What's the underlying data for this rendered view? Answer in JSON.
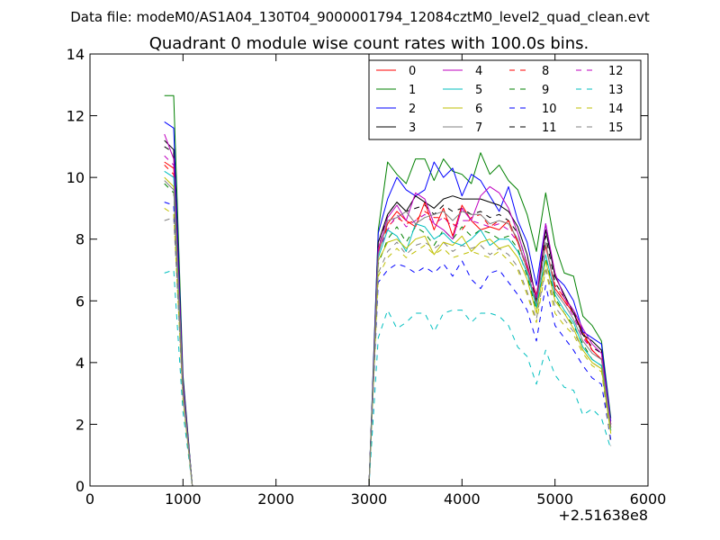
{
  "figure": {
    "suptitle": "Data file: modeM0/AS1A04_130T04_9000001794_12084cztM0_level2_quad_clean.evt"
  },
  "chart_data": {
    "type": "line",
    "title": "Quadrant 0 module wise count rates with 100.0s bins.",
    "xlabel": "",
    "ylabel": "",
    "x_offset_label": "+2.51638e8",
    "xlim": [
      0,
      6000
    ],
    "ylim": [
      0,
      14
    ],
    "xticks": [
      0,
      1000,
      2000,
      3000,
      4000,
      5000,
      6000
    ],
    "yticks": [
      0,
      2,
      4,
      6,
      8,
      10,
      12,
      14
    ],
    "grid": false,
    "legend_position": "top-right",
    "legend_columns": 4,
    "x": [
      800,
      900,
      1000,
      1100,
      3000,
      3100,
      3200,
      3300,
      3400,
      3500,
      3600,
      3700,
      3800,
      3900,
      4000,
      4100,
      4200,
      4300,
      4400,
      4500,
      4600,
      4700,
      4800,
      4900,
      5000,
      5100,
      5200,
      5300,
      5400,
      5500,
      5600
    ],
    "series": [
      {
        "name": "0",
        "color": "#ff0000",
        "dash": "solid",
        "values": [
          10.5,
          10.3,
          3.2,
          0,
          0,
          7.6,
          8.5,
          8.9,
          8.6,
          8.4,
          9.2,
          8.3,
          9.0,
          8.1,
          9.1,
          8.6,
          8.3,
          8.4,
          8.3,
          8.6,
          7.9,
          7.1,
          6.2,
          7.8,
          6.4,
          6.0,
          5.6,
          5.0,
          4.4,
          4.1,
          2.0
        ]
      },
      {
        "name": "1",
        "color": "#008000",
        "dash": "solid",
        "values": [
          12.65,
          12.65,
          3.6,
          0,
          0,
          8.3,
          10.5,
          10.1,
          9.8,
          10.6,
          10.6,
          9.9,
          10.6,
          10.2,
          10.1,
          9.8,
          10.8,
          10.1,
          10.4,
          9.9,
          9.6,
          8.8,
          7.6,
          9.5,
          7.8,
          6.9,
          6.8,
          5.5,
          5.2,
          4.7,
          2.2
        ]
      },
      {
        "name": "2",
        "color": "#0000ff",
        "dash": "solid",
        "values": [
          11.8,
          11.6,
          3.5,
          0,
          0,
          8.2,
          9.3,
          10.0,
          9.6,
          9.4,
          9.6,
          10.5,
          10.0,
          10.3,
          9.4,
          10.1,
          9.9,
          9.4,
          8.9,
          9.7,
          8.6,
          7.9,
          6.5,
          8.5,
          6.8,
          6.5,
          6.0,
          5.0,
          4.8,
          4.6,
          2.1
        ]
      },
      {
        "name": "3",
        "color": "#000000",
        "dash": "solid",
        "values": [
          11.2,
          10.9,
          3.4,
          0,
          0,
          7.9,
          8.8,
          9.2,
          8.9,
          9.4,
          9.2,
          9.0,
          9.3,
          9.4,
          9.3,
          9.3,
          9.3,
          9.2,
          9.1,
          8.9,
          8.4,
          7.5,
          6.0,
          8.3,
          6.8,
          6.2,
          5.6,
          4.9,
          4.7,
          4.4,
          1.9
        ]
      },
      {
        "name": "4",
        "color": "#bf00bf",
        "dash": "solid",
        "values": [
          11.4,
          10.6,
          3.3,
          0,
          0,
          7.7,
          8.7,
          9.1,
          8.6,
          9.5,
          9.3,
          8.5,
          8.3,
          8.0,
          9.0,
          8.6,
          9.4,
          9.7,
          9.5,
          9.0,
          8.2,
          7.2,
          6.1,
          8.5,
          6.9,
          6.1,
          5.7,
          5.1,
          4.6,
          4.3,
          2.0
        ]
      },
      {
        "name": "5",
        "color": "#00bfbf",
        "dash": "solid",
        "values": [
          10.2,
          10.0,
          3.1,
          0,
          0,
          7.4,
          8.3,
          8.1,
          7.6,
          8.5,
          8.4,
          8.0,
          8.2,
          7.9,
          7.8,
          8.0,
          8.3,
          7.8,
          8.0,
          8.0,
          7.6,
          6.9,
          5.8,
          7.5,
          6.2,
          5.7,
          5.3,
          4.5,
          4.1,
          3.9,
          1.8
        ]
      },
      {
        "name": "6",
        "color": "#bfbf00",
        "dash": "solid",
        "values": [
          10.0,
          9.7,
          3.0,
          0,
          0,
          7.3,
          7.9,
          8.0,
          7.7,
          8.0,
          8.1,
          7.5,
          7.9,
          7.8,
          8.1,
          7.6,
          7.9,
          8.0,
          7.7,
          7.8,
          7.4,
          6.7,
          5.6,
          7.3,
          6.0,
          5.6,
          5.1,
          4.4,
          4.0,
          3.8,
          1.7
        ]
      },
      {
        "name": "7",
        "color": "#808080",
        "dash": "solid",
        "values": [
          9.9,
          9.6,
          3.0,
          0,
          0,
          7.5,
          8.6,
          8.7,
          8.9,
          8.5,
          8.7,
          8.8,
          8.9,
          8.6,
          8.9,
          8.8,
          8.8,
          8.5,
          8.6,
          8.5,
          8.0,
          7.0,
          5.9,
          7.9,
          6.3,
          5.9,
          5.4,
          4.7,
          4.3,
          4.1,
          1.9
        ]
      },
      {
        "name": "8",
        "color": "#ff0000",
        "dash": "dashed",
        "values": [
          10.4,
          10.1,
          3.1,
          0,
          0,
          7.6,
          8.4,
          8.7,
          8.5,
          8.6,
          8.9,
          8.7,
          8.7,
          8.5,
          8.3,
          8.7,
          8.8,
          8.4,
          8.6,
          8.5,
          7.9,
          7.0,
          6.0,
          7.8,
          6.5,
          6.1,
          5.6,
          4.9,
          4.4,
          4.1,
          1.9
        ]
      },
      {
        "name": "9",
        "color": "#008000",
        "dash": "dashed",
        "values": [
          9.8,
          9.5,
          3.0,
          0,
          0,
          7.2,
          8.0,
          8.4,
          7.9,
          8.4,
          8.2,
          7.8,
          8.3,
          8.0,
          8.4,
          8.1,
          8.3,
          8.2,
          8.0,
          8.1,
          7.7,
          6.8,
          5.7,
          7.4,
          6.1,
          5.6,
          5.2,
          4.6,
          4.1,
          3.9,
          1.8
        ]
      },
      {
        "name": "10",
        "color": "#0000ff",
        "dash": "dashed",
        "values": [
          9.2,
          9.1,
          2.9,
          0,
          0,
          6.6,
          7.0,
          7.2,
          7.1,
          6.9,
          7.1,
          6.9,
          7.2,
          6.8,
          7.3,
          6.7,
          6.4,
          6.9,
          7.0,
          6.6,
          6.2,
          5.7,
          4.7,
          6.5,
          5.2,
          4.8,
          4.4,
          3.9,
          3.5,
          3.3,
          1.5
        ]
      },
      {
        "name": "11",
        "color": "#000000",
        "dash": "dashed",
        "values": [
          11.0,
          10.8,
          3.3,
          0,
          0,
          7.7,
          8.8,
          9.2,
          8.9,
          9.0,
          9.1,
          8.8,
          9.1,
          8.9,
          9.0,
          8.8,
          8.9,
          8.7,
          8.8,
          8.6,
          8.2,
          7.2,
          6.0,
          8.1,
          6.6,
          6.1,
          5.7,
          4.9,
          4.5,
          4.3,
          2.0
        ]
      },
      {
        "name": "12",
        "color": "#bf00bf",
        "dash": "dashed",
        "values": [
          10.7,
          10.4,
          3.2,
          0,
          0,
          7.6,
          8.3,
          8.8,
          8.4,
          8.6,
          8.8,
          8.5,
          8.7,
          8.4,
          8.6,
          8.6,
          8.5,
          8.4,
          8.5,
          8.3,
          7.9,
          7.0,
          5.9,
          7.8,
          6.4,
          6.0,
          5.5,
          4.8,
          4.4,
          4.1,
          1.9
        ]
      },
      {
        "name": "13",
        "color": "#00bfbf",
        "dash": "dashed",
        "values": [
          6.9,
          7.0,
          2.4,
          0,
          0,
          4.8,
          5.7,
          5.1,
          5.3,
          5.6,
          5.6,
          5.0,
          5.6,
          5.7,
          5.7,
          5.3,
          5.6,
          5.6,
          5.5,
          5.2,
          4.5,
          4.2,
          3.3,
          4.4,
          3.6,
          3.2,
          3.1,
          2.3,
          2.5,
          2.2,
          1.2
        ]
      },
      {
        "name": "14",
        "color": "#bfbf00",
        "dash": "dashed",
        "values": [
          9.0,
          8.8,
          2.8,
          0,
          0,
          6.8,
          7.4,
          7.7,
          7.4,
          7.6,
          7.8,
          7.5,
          7.7,
          7.4,
          7.5,
          7.6,
          7.5,
          7.4,
          7.6,
          7.3,
          7.0,
          6.2,
          5.3,
          7.0,
          5.6,
          5.2,
          4.9,
          4.3,
          3.9,
          3.7,
          1.7
        ]
      },
      {
        "name": "15",
        "color": "#808080",
        "dash": "dashed",
        "values": [
          8.6,
          8.7,
          2.8,
          0,
          0,
          6.9,
          7.6,
          7.9,
          7.5,
          7.8,
          7.9,
          7.7,
          7.9,
          7.6,
          7.8,
          7.7,
          7.8,
          7.5,
          7.7,
          7.5,
          7.1,
          6.3,
          5.4,
          7.1,
          5.8,
          5.4,
          5.0,
          4.4,
          4.0,
          3.8,
          1.3
        ]
      }
    ]
  }
}
